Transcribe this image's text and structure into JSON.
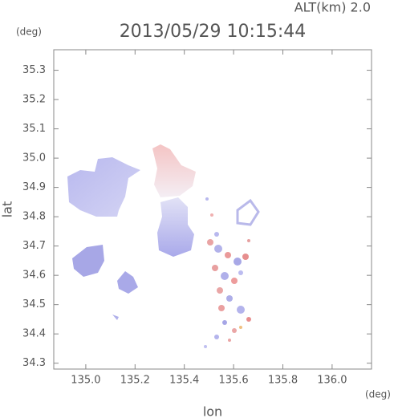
{
  "chart_data": {
    "type": "radar-map",
    "title": "2013/05/29 10:15:44",
    "annotation": "ALT(km) 2.0",
    "x_unit": "(deg)",
    "y_unit": "(deg)",
    "xlabel": "lon",
    "ylabel": "lat",
    "xlim": [
      134.87,
      136.16
    ],
    "ylim": [
      34.28,
      35.37
    ],
    "xticks": [
      {
        "value": 135,
        "label": "135.0"
      },
      135.2,
      135.4,
      135.6,
      135.8,
      {
        "value": 136,
        "label": "136.0"
      }
    ],
    "yticks": [
      34.3,
      34.4,
      34.5,
      34.6,
      34.7,
      34.8,
      34.9,
      {
        "value": 35,
        "label": "35.0"
      },
      35.1,
      35.2,
      35.3
    ]
  }
}
